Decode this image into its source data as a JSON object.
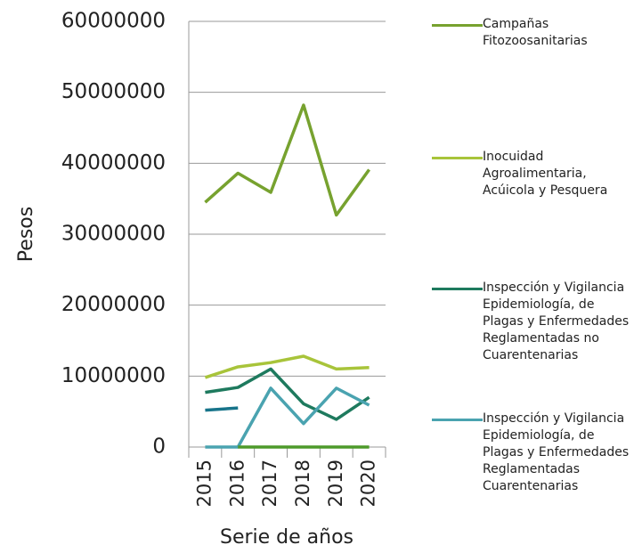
{
  "chart_data": {
    "type": "line",
    "y_label": "Pesos",
    "x_label": "Serie de años",
    "categories": [
      "2015",
      "2016",
      "2017",
      "2018",
      "2019",
      "2020"
    ],
    "series": [
      {
        "name": "Campañas Fitozoosanitarias",
        "color": "#77a22f",
        "values": [
          34500000,
          38600000,
          35900000,
          48200000,
          32700000,
          39100000
        ]
      },
      {
        "name": "Inocuidad Agroalimentaria, Acúicola y Pesquera",
        "color": "#a8c43a",
        "values": [
          9800000,
          11300000,
          11900000,
          12800000,
          11000000,
          11200000
        ]
      },
      {
        "name": "Inspección y Vigilancia Epidemiología, de Plagas y Enfermedades Reglamentadas no Cuarentenarias",
        "color": "#1e7a5e",
        "values": [
          7700000,
          8400000,
          11000000,
          6100000,
          3900000,
          7000000
        ]
      },
      {
        "name": "Inspección y Vigilancia Epidemiología, de Plagas y Enfermedades Reglamentadas Cuarentenarias",
        "color": "#4aa3b0",
        "values": [
          0,
          0,
          8300000,
          3300000,
          8300000,
          5900000
        ]
      },
      {
        "color": "#17748a",
        "values": [
          5200000,
          5500000,
          null,
          null,
          null,
          null
        ]
      },
      {
        "color": "#4d9a2a",
        "values": [
          null,
          0,
          0,
          0,
          0,
          0
        ]
      }
    ],
    "ylim": [
      0,
      60000000
    ],
    "yticks": [
      0,
      10000000,
      20000000,
      30000000,
      40000000,
      50000000,
      60000000
    ],
    "grid": true
  }
}
